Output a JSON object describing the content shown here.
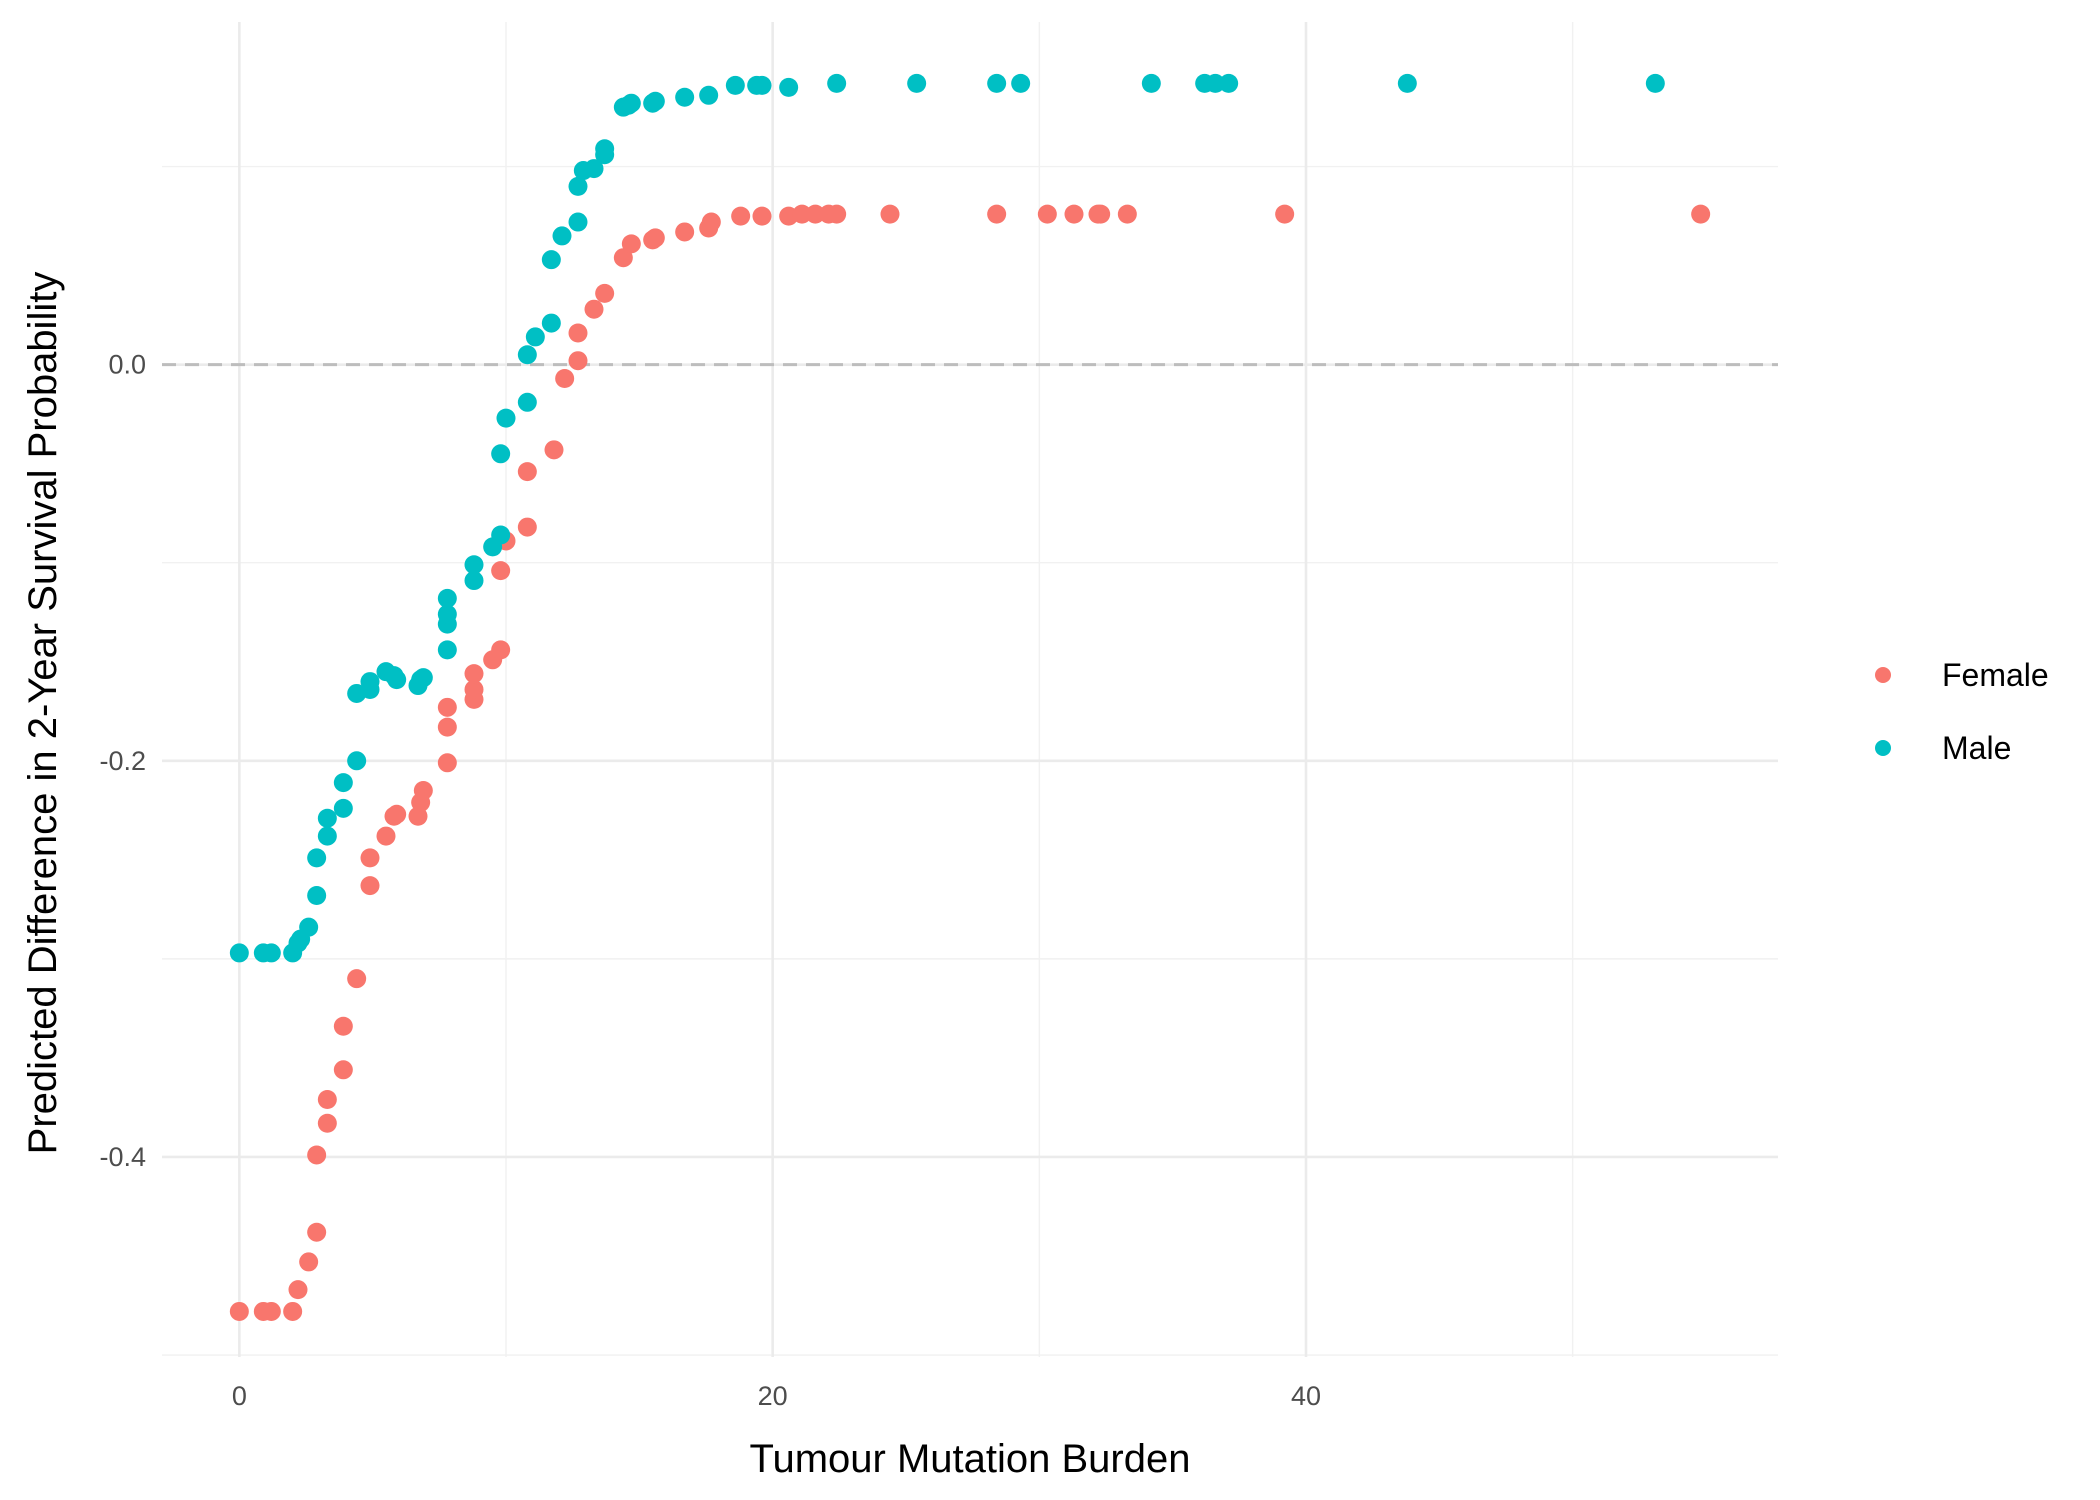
{
  "chart_data": {
    "type": "scatter",
    "title": "",
    "xlabel": "Tumour Mutation Burden",
    "ylabel": "Predicted Difference in 2-Year Survival Probability",
    "xlim": [
      -2.9,
      57.7
    ],
    "ylim": [
      -0.501,
      0.173
    ],
    "x_ticks": [
      0,
      20,
      40
    ],
    "y_ticks": [
      -0.4,
      -0.2,
      0.0
    ],
    "x_tick_labels": [
      "0",
      "20",
      "40"
    ],
    "y_tick_labels": [
      "-0.4",
      "-0.2",
      "0.0"
    ],
    "grid": true,
    "reference_line": {
      "y": 0.0,
      "style": "dashed"
    },
    "legend_position": "right",
    "series": [
      {
        "name": "Female",
        "color": "#F8766D",
        "points": [
          [
            0.0,
            -0.478
          ],
          [
            0.9,
            -0.478
          ],
          [
            1.2,
            -0.478
          ],
          [
            2.0,
            -0.478
          ],
          [
            2.2,
            -0.467
          ],
          [
            2.6,
            -0.453
          ],
          [
            2.9,
            -0.438
          ],
          [
            2.9,
            -0.399
          ],
          [
            3.3,
            -0.383
          ],
          [
            3.3,
            -0.371
          ],
          [
            3.9,
            -0.356
          ],
          [
            3.9,
            -0.334
          ],
          [
            4.4,
            -0.31
          ],
          [
            4.9,
            -0.263
          ],
          [
            4.9,
            -0.249
          ],
          [
            5.5,
            -0.238
          ],
          [
            5.8,
            -0.228
          ],
          [
            5.9,
            -0.227
          ],
          [
            6.7,
            -0.228
          ],
          [
            6.8,
            -0.221
          ],
          [
            6.9,
            -0.215
          ],
          [
            7.8,
            -0.201
          ],
          [
            7.8,
            -0.183
          ],
          [
            7.8,
            -0.173
          ],
          [
            8.8,
            -0.169
          ],
          [
            8.8,
            -0.164
          ],
          [
            8.8,
            -0.156
          ],
          [
            9.5,
            -0.149
          ],
          [
            9.8,
            -0.144
          ],
          [
            9.8,
            -0.104
          ],
          [
            10.0,
            -0.089
          ],
          [
            10.8,
            -0.082
          ],
          [
            10.8,
            -0.054
          ],
          [
            11.8,
            -0.043
          ],
          [
            12.2,
            -0.007
          ],
          [
            12.7,
            0.002
          ],
          [
            12.7,
            0.016
          ],
          [
            13.3,
            0.028
          ],
          [
            13.7,
            0.036
          ],
          [
            14.4,
            0.054
          ],
          [
            14.7,
            0.061
          ],
          [
            15.5,
            0.063
          ],
          [
            15.6,
            0.064
          ],
          [
            16.7,
            0.067
          ],
          [
            17.6,
            0.069
          ],
          [
            17.7,
            0.072
          ],
          [
            18.8,
            0.075
          ],
          [
            19.6,
            0.075
          ],
          [
            20.6,
            0.075
          ],
          [
            21.1,
            0.076
          ],
          [
            21.6,
            0.076
          ],
          [
            22.1,
            0.076
          ],
          [
            22.4,
            0.076
          ],
          [
            24.4,
            0.076
          ],
          [
            28.4,
            0.076
          ],
          [
            30.3,
            0.076
          ],
          [
            31.3,
            0.076
          ],
          [
            32.2,
            0.076
          ],
          [
            32.3,
            0.076
          ],
          [
            33.3,
            0.076
          ],
          [
            39.2,
            0.076
          ],
          [
            54.8,
            0.076
          ]
        ]
      },
      {
        "name": "Male",
        "color": "#00BFC4",
        "points": [
          [
            0.0,
            -0.297
          ],
          [
            0.9,
            -0.297
          ],
          [
            1.2,
            -0.297
          ],
          [
            2.0,
            -0.297
          ],
          [
            2.2,
            -0.292
          ],
          [
            2.3,
            -0.29
          ],
          [
            2.6,
            -0.284
          ],
          [
            2.9,
            -0.268
          ],
          [
            2.9,
            -0.249
          ],
          [
            3.3,
            -0.238
          ],
          [
            3.3,
            -0.229
          ],
          [
            3.9,
            -0.224
          ],
          [
            3.9,
            -0.211
          ],
          [
            4.4,
            -0.2
          ],
          [
            4.4,
            -0.166
          ],
          [
            4.9,
            -0.164
          ],
          [
            4.9,
            -0.16
          ],
          [
            5.5,
            -0.155
          ],
          [
            5.8,
            -0.157
          ],
          [
            5.9,
            -0.159
          ],
          [
            6.7,
            -0.162
          ],
          [
            6.8,
            -0.159
          ],
          [
            6.9,
            -0.158
          ],
          [
            7.8,
            -0.144
          ],
          [
            7.8,
            -0.131
          ],
          [
            7.8,
            -0.126
          ],
          [
            7.8,
            -0.118
          ],
          [
            8.8,
            -0.109
          ],
          [
            8.8,
            -0.101
          ],
          [
            9.5,
            -0.092
          ],
          [
            9.8,
            -0.086
          ],
          [
            9.8,
            -0.045
          ],
          [
            10.0,
            -0.027
          ],
          [
            10.8,
            -0.019
          ],
          [
            10.8,
            0.005
          ],
          [
            11.1,
            0.014
          ],
          [
            11.7,
            0.021
          ],
          [
            11.7,
            0.053
          ],
          [
            12.1,
            0.065
          ],
          [
            12.7,
            0.072
          ],
          [
            12.7,
            0.09
          ],
          [
            12.9,
            0.098
          ],
          [
            13.3,
            0.099
          ],
          [
            13.7,
            0.106
          ],
          [
            13.7,
            0.109
          ],
          [
            14.4,
            0.13
          ],
          [
            14.6,
            0.131
          ],
          [
            14.7,
            0.132
          ],
          [
            15.5,
            0.132
          ],
          [
            15.6,
            0.133
          ],
          [
            16.7,
            0.135
          ],
          [
            17.6,
            0.136
          ],
          [
            18.6,
            0.141
          ],
          [
            19.4,
            0.141
          ],
          [
            19.6,
            0.141
          ],
          [
            20.6,
            0.14
          ],
          [
            22.4,
            0.142
          ],
          [
            25.4,
            0.142
          ],
          [
            28.4,
            0.142
          ],
          [
            29.3,
            0.142
          ],
          [
            34.2,
            0.142
          ],
          [
            36.2,
            0.142
          ],
          [
            36.6,
            0.142
          ],
          [
            37.1,
            0.142
          ],
          [
            43.8,
            0.142
          ],
          [
            53.1,
            0.142
          ]
        ]
      }
    ]
  }
}
